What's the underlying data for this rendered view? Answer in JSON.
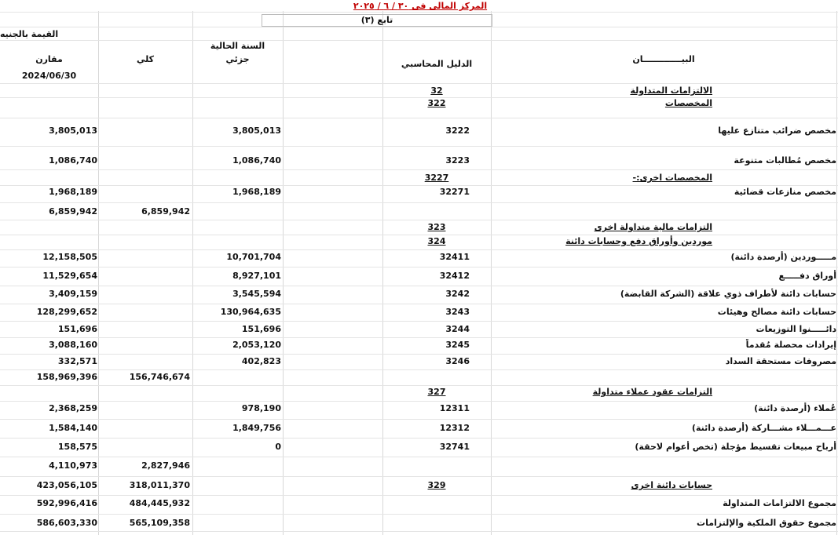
{
  "header": {
    "title": "المركز المالى فى ٣٠ / ٦ / ٢٠٢٥",
    "continued": "تابع (٣)",
    "currency": "القيمة بالجنيه",
    "current_year": "السنة الحالية",
    "col_comparative": "مقارن",
    "col_total": "كلي",
    "col_partial": "جزئي",
    "col_code": "الدليل المحاسبي",
    "col_description": "البيـــــــــــــان",
    "comparative_date": "2024/06/30"
  },
  "rows": [
    {
      "description": "الالتزامات المتداولة",
      "code": "32",
      "underlined": true
    },
    {
      "description": "المخصصات",
      "code": "322",
      "underlined": true
    },
    {
      "description": "مخصص ضرائب متنازع عليها",
      "code": "3222",
      "partial": "3,805,013",
      "comparative": "3,805,013"
    },
    {
      "description": "مخصص مُطالبات متنوعة",
      "code": "3223",
      "partial": "1,086,740",
      "comparative": "1,086,740"
    },
    {
      "description": "المخصصات اخرى:-",
      "code": "3227",
      "underlined": true
    },
    {
      "description": "مخصص منازعات قضائية",
      "code": "32271",
      "partial": "1,968,189",
      "comparative": "1,968,189"
    },
    {
      "total": "6,859,942",
      "comparative": "6,859,942"
    },
    {
      "description": "التزامات مالية متداولة اخرى",
      "code": "323",
      "underlined": true
    },
    {
      "description": "موردين وأوراق دفع وحسابات دائنة",
      "code": "324",
      "underlined": true
    },
    {
      "description": "مـــــوردين (أرصدة دائنة)",
      "code": "32411",
      "partial": "10,701,704",
      "comparative": "12,158,505"
    },
    {
      "description": "أوراق دفـــــع",
      "code": "32412",
      "partial": "8,927,101",
      "comparative": "11,529,654"
    },
    {
      "description": "حسابات دائنة لأطراف ذوي علاقة (الشركة القابضة)",
      "code": "3242",
      "partial": "3,545,594",
      "comparative": "3,409,159"
    },
    {
      "description": "حسابات دائنة مصالح وهيئات",
      "code": "3243",
      "partial": "130,964,635",
      "comparative": "128,299,652"
    },
    {
      "description": "دائـــــنوا التوزيعات",
      "code": "3244",
      "partial": "151,696",
      "comparative": "151,696"
    },
    {
      "description": "إيرادات محصلة مُقدماً",
      "code": "3245",
      "partial": "2,053,120",
      "comparative": "3,088,160"
    },
    {
      "description": "مصروفات مستحقة السداد",
      "code": "3246",
      "partial": "402,823",
      "comparative": "332,571"
    },
    {
      "total": "156,746,674",
      "comparative": "158,969,396"
    },
    {
      "description": "التزامات عقود عملاء متداولة",
      "code": "327",
      "underlined": true
    },
    {
      "description": "عُملاء (أرصدة دائنة)",
      "code": "12311",
      "partial": "978,190",
      "comparative": "2,368,259"
    },
    {
      "description": "عـــمـــلاء مشـــاركة (أرصدة دائنة)",
      "code": "12312",
      "partial": "1,849,756",
      "comparative": "1,584,140"
    },
    {
      "description": "أرباح مبيعات تقسيط مؤجلة (تخص أعوام لاحقة)",
      "code": "32741",
      "partial": "0",
      "comparative": "158,575"
    },
    {
      "total": "2,827,946",
      "comparative": "4,110,973"
    },
    {
      "description": "حسابات دائنة اخرى",
      "code": "329",
      "underlined": true,
      "total": "318,011,370",
      "comparative": "423,056,105"
    },
    {
      "description": "مجموع الالتزامات المتداولة",
      "total": "484,445,932",
      "comparative": "592,996,416"
    },
    {
      "description": "مجموع حقوق الملكية والإلتزامات",
      "total": "565,109,358",
      "comparative": "586,603,330"
    }
  ]
}
